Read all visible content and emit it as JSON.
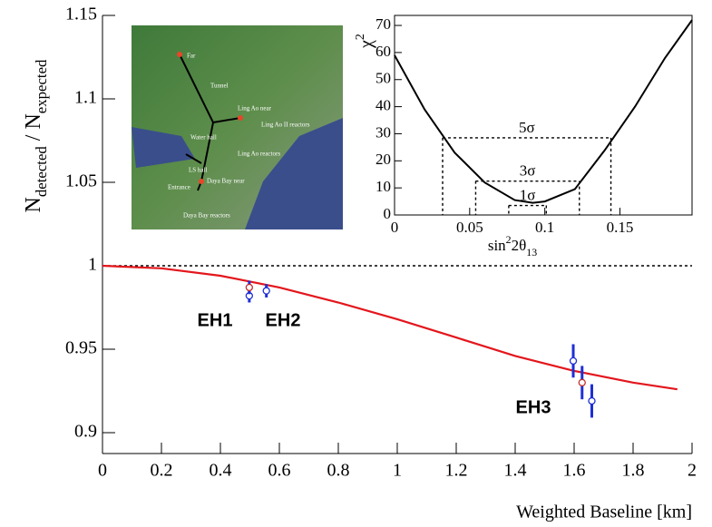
{
  "chart_data": [
    {
      "type": "line",
      "xlabel": "Weighted Baseline [km]",
      "ylabel": [
        "N",
        "detected",
        " / N",
        "expected"
      ],
      "xlim": [
        0,
        2
      ],
      "ylim": [
        0.8875,
        1.15
      ],
      "xticks": [
        0,
        0.2,
        0.4,
        0.6,
        0.8,
        1,
        1.2,
        1.4,
        1.6,
        1.8,
        2
      ],
      "yticks": [
        0.9,
        0.95,
        1,
        1.05,
        1.1,
        1.15
      ],
      "reference_line": 1,
      "curve": {
        "color": "#e3161c",
        "x": [
          0,
          0.2,
          0.4,
          0.6,
          0.8,
          1,
          1.2,
          1.4,
          1.6,
          1.8,
          1.95
        ],
        "values": [
          1,
          0.9985,
          0.994,
          0.987,
          0.978,
          0.968,
          0.957,
          0.946,
          0.937,
          0.93,
          0.926
        ]
      },
      "points": {
        "x": [
          0.498,
          0.498,
          0.556,
          1.597,
          1.627,
          1.66
        ],
        "values": [
          0.982,
          0.987,
          0.985,
          0.943,
          0.93,
          0.919
        ],
        "errors": [
          0.004,
          0.004,
          0.004,
          0.01,
          0.01,
          0.01
        ],
        "colors": [
          "#1f2fd6",
          "#c03030",
          "#1f2fd6",
          "#1f2fd6",
          "#c03030",
          "#1f2fd6"
        ],
        "bar_color": "#1f2fd6"
      },
      "annotations": [
        "EH1",
        "EH2",
        "EH3"
      ]
    },
    {
      "type": "line",
      "xlabel": [
        "sin",
        "2",
        "2θ",
        "13"
      ],
      "ylabel": [
        "χ",
        "2"
      ],
      "xlim": [
        0,
        0.198
      ],
      "ylim": [
        0,
        73.7
      ],
      "xticks": [
        0,
        0.05,
        0.1,
        0.15
      ],
      "yticks": [
        0,
        10,
        20,
        30,
        40,
        50,
        60,
        70
      ],
      "curve": {
        "color": "#000000",
        "x": [
          0,
          0.02,
          0.04,
          0.06,
          0.08,
          0.092,
          0.1,
          0.12,
          0.14,
          0.16,
          0.18,
          0.198
        ],
        "values": [
          59,
          39,
          23,
          12,
          5.5,
          4.5,
          5,
          9.5,
          24,
          40,
          58,
          72
        ]
      },
      "levels": [
        {
          "label": "5σ",
          "value": 28.5,
          "x": [
            0.032,
            0.144
          ]
        },
        {
          "label": "3σ",
          "value": 12.5,
          "x": [
            0.054,
            0.123
          ]
        },
        {
          "label": "1σ",
          "value": 3.5,
          "x": [
            0.076,
            0.101
          ]
        }
      ]
    }
  ],
  "map": {
    "labels": [
      "Far",
      "Tunnel",
      "Ling Ao near",
      "Ling Ao II reactors",
      "Ling Ao reactors",
      "Water hall",
      "LS hall",
      "Entrance",
      "Daya Bay near",
      "Daya Bay reactors"
    ]
  }
}
